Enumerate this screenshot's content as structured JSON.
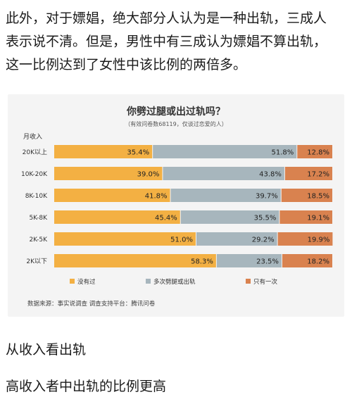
{
  "intro": {
    "line1": "此外，对于嫖娼，绝大部分人认为是一种出轨，三成人",
    "line2": "表示说不清。但是，男性中有三成认为嫖娼不算出轨，",
    "line3": "这一比例达到了女性中该比例的两倍多。"
  },
  "chart_data": {
    "type": "bar",
    "stacked": true,
    "orientation": "horizontal",
    "title": "你劈过腿或出过轨吗？",
    "subtitle": "（有效问卷数68119，仅谈过恋爱的人）",
    "ylabel": "月收入",
    "categories": [
      "20K以上",
      "10K-20K",
      "8K-10K",
      "5K-8K",
      "2K-5K",
      "2K以下"
    ],
    "series": [
      {
        "name": "没有过",
        "color": "#F3B043",
        "values": [
          35.4,
          39.0,
          41.8,
          45.4,
          51.0,
          58.3
        ]
      },
      {
        "name": "多次劈腿或出轨",
        "color": "#A7B6BD",
        "values": [
          51.8,
          43.8,
          39.7,
          35.5,
          29.2,
          23.5
        ]
      },
      {
        "name": "只有一次",
        "color": "#D9824F",
        "values": [
          12.8,
          17.2,
          18.5,
          19.1,
          19.9,
          18.2
        ]
      }
    ],
    "value_labels": [
      [
        "35.4%",
        "51.8%",
        "12.8%"
      ],
      [
        "39.0%",
        "43.8%",
        "17.2%"
      ],
      [
        "41.8%",
        "39.7%",
        "18.5%"
      ],
      [
        "45.4%",
        "35.5%",
        "19.1%"
      ],
      [
        "51.0%",
        "29.2%",
        "19.9%"
      ],
      [
        "58.3%",
        "23.5%",
        "18.2%"
      ]
    ],
    "xlim": [
      0,
      100
    ],
    "legend_position": "bottom",
    "source": "数据来源：事实说调查 调查支持平台：腾讯问卷"
  },
  "after": {
    "line1": "从收入看出轨",
    "line2": "高收入者中出轨的比例更高"
  }
}
